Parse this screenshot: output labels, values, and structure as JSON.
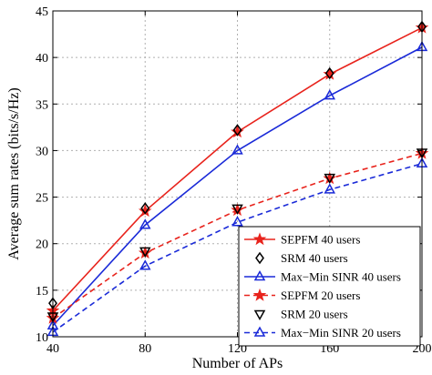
{
  "chart_data": {
    "type": "line",
    "xlabel": "Number of APs",
    "ylabel": "Average sum rates (bits/s/Hz)",
    "xlim": [
      40,
      200
    ],
    "ylim": [
      10,
      45
    ],
    "xticks": [
      40,
      80,
      120,
      160,
      200
    ],
    "yticks": [
      10,
      15,
      20,
      25,
      30,
      35,
      40,
      45
    ],
    "grid": true,
    "legend_position": "bottom-right",
    "x": [
      40,
      80,
      120,
      160,
      200
    ],
    "series": [
      {
        "name": "SEPFM 40 users",
        "values": [
          12.8,
          23.5,
          32.0,
          38.2,
          43.2
        ],
        "color": "#e8231c",
        "line": "solid",
        "marker": "star"
      },
      {
        "name": "SRM 40 users",
        "values": [
          13.6,
          23.8,
          32.2,
          38.3,
          43.3
        ],
        "color": "#000000",
        "line": "none",
        "marker": "diamond"
      },
      {
        "name": "Max−Min SINR 40 users",
        "values": [
          11.2,
          22.0,
          30.0,
          35.9,
          41.1
        ],
        "color": "#1a2ad8",
        "line": "solid",
        "marker": "triangle-up"
      },
      {
        "name": "SEPFM 20 users",
        "values": [
          12.0,
          19.0,
          23.6,
          27.0,
          29.7
        ],
        "color": "#e8231c",
        "line": "dashed",
        "marker": "star"
      },
      {
        "name": "SRM 20 users",
        "values": [
          12.2,
          19.2,
          23.8,
          27.1,
          29.8
        ],
        "color": "#000000",
        "line": "none",
        "marker": "triangle-down"
      },
      {
        "name": "Max−Min SINR 20 users",
        "values": [
          10.5,
          17.6,
          22.3,
          25.8,
          28.6
        ],
        "color": "#1a2ad8",
        "line": "dashed",
        "marker": "triangle-up"
      }
    ]
  }
}
